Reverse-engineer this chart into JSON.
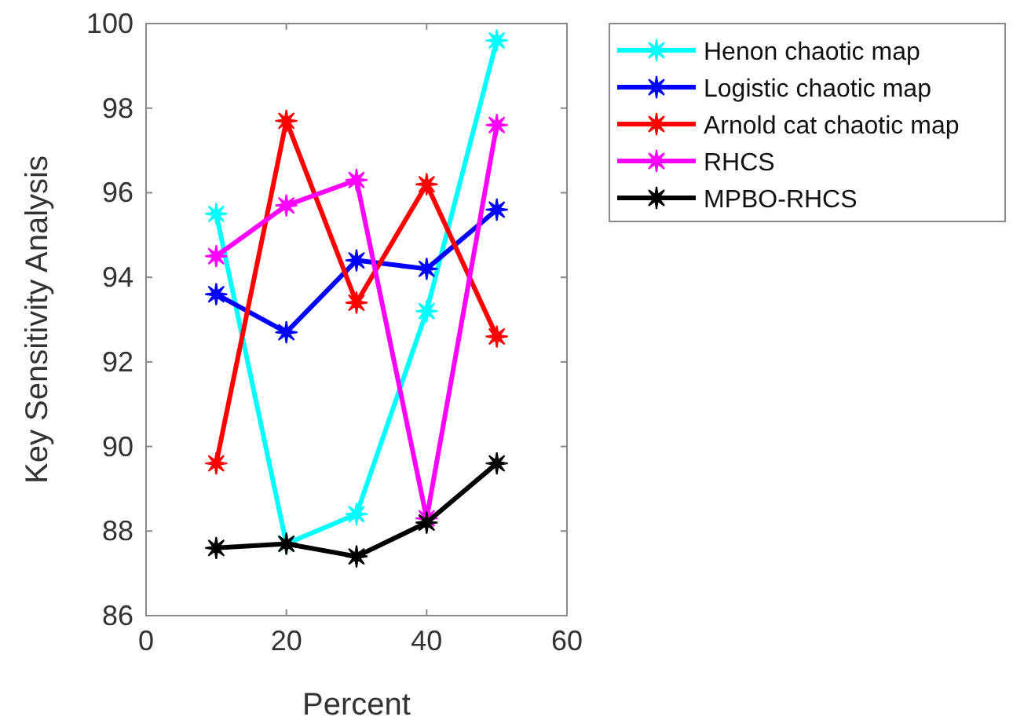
{
  "chart_data": {
    "type": "line",
    "xlabel": "Percent",
    "ylabel": "Key Sensitivity Analysis",
    "x": [
      10,
      20,
      30,
      40,
      50
    ],
    "xlim": [
      0,
      60
    ],
    "xticks": [
      0,
      20,
      40,
      60
    ],
    "ylim": [
      86,
      100
    ],
    "yticks": [
      86,
      88,
      90,
      92,
      94,
      96,
      98,
      100
    ],
    "grid": false,
    "legend": "top right",
    "marker": "star",
    "line_style": "solid",
    "series": [
      {
        "name": "Henon chaotic map",
        "color": "#00ffff",
        "values": [
          95.5,
          87.7,
          88.4,
          93.2,
          99.6
        ]
      },
      {
        "name": "Logistic chaotic map",
        "color": "#0000ff",
        "values": [
          93.6,
          92.7,
          94.4,
          94.2,
          95.6
        ]
      },
      {
        "name": "Arnold cat chaotic map",
        "color": "#ff0000",
        "values": [
          89.6,
          97.7,
          93.4,
          96.2,
          92.6
        ]
      },
      {
        "name": "RHCS",
        "color": "#ff00ff",
        "values": [
          94.5,
          95.7,
          96.3,
          88.3,
          97.6
        ]
      },
      {
        "name": "MPBO-RHCS",
        "color": "#000000",
        "values": [
          87.6,
          87.7,
          87.4,
          88.2,
          89.6
        ]
      }
    ]
  }
}
